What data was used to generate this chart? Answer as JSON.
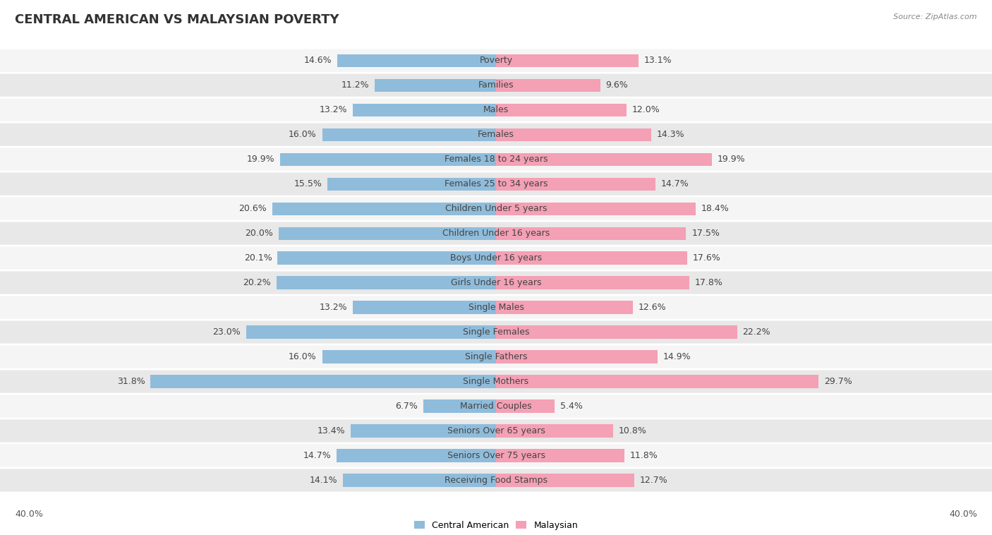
{
  "title": "CENTRAL AMERICAN VS MALAYSIAN POVERTY",
  "source": "Source: ZipAtlas.com",
  "categories": [
    "Poverty",
    "Families",
    "Males",
    "Females",
    "Females 18 to 24 years",
    "Females 25 to 34 years",
    "Children Under 5 years",
    "Children Under 16 years",
    "Boys Under 16 years",
    "Girls Under 16 years",
    "Single Males",
    "Single Females",
    "Single Fathers",
    "Single Mothers",
    "Married Couples",
    "Seniors Over 65 years",
    "Seniors Over 75 years",
    "Receiving Food Stamps"
  ],
  "central_american": [
    14.6,
    11.2,
    13.2,
    16.0,
    19.9,
    15.5,
    20.6,
    20.0,
    20.1,
    20.2,
    13.2,
    23.0,
    16.0,
    31.8,
    6.7,
    13.4,
    14.7,
    14.1
  ],
  "malaysian": [
    13.1,
    9.6,
    12.0,
    14.3,
    19.9,
    14.7,
    18.4,
    17.5,
    17.6,
    17.8,
    12.6,
    22.2,
    14.9,
    29.7,
    5.4,
    10.8,
    11.8,
    12.7
  ],
  "ca_color": "#8fbcdb",
  "my_color": "#f4a0b5",
  "row_odd": "#f5f5f5",
  "row_even": "#e8e8e8",
  "xlim": 40.0,
  "bar_height": 0.52,
  "title_fontsize": 13,
  "label_fontsize": 9,
  "value_fontsize": 9
}
